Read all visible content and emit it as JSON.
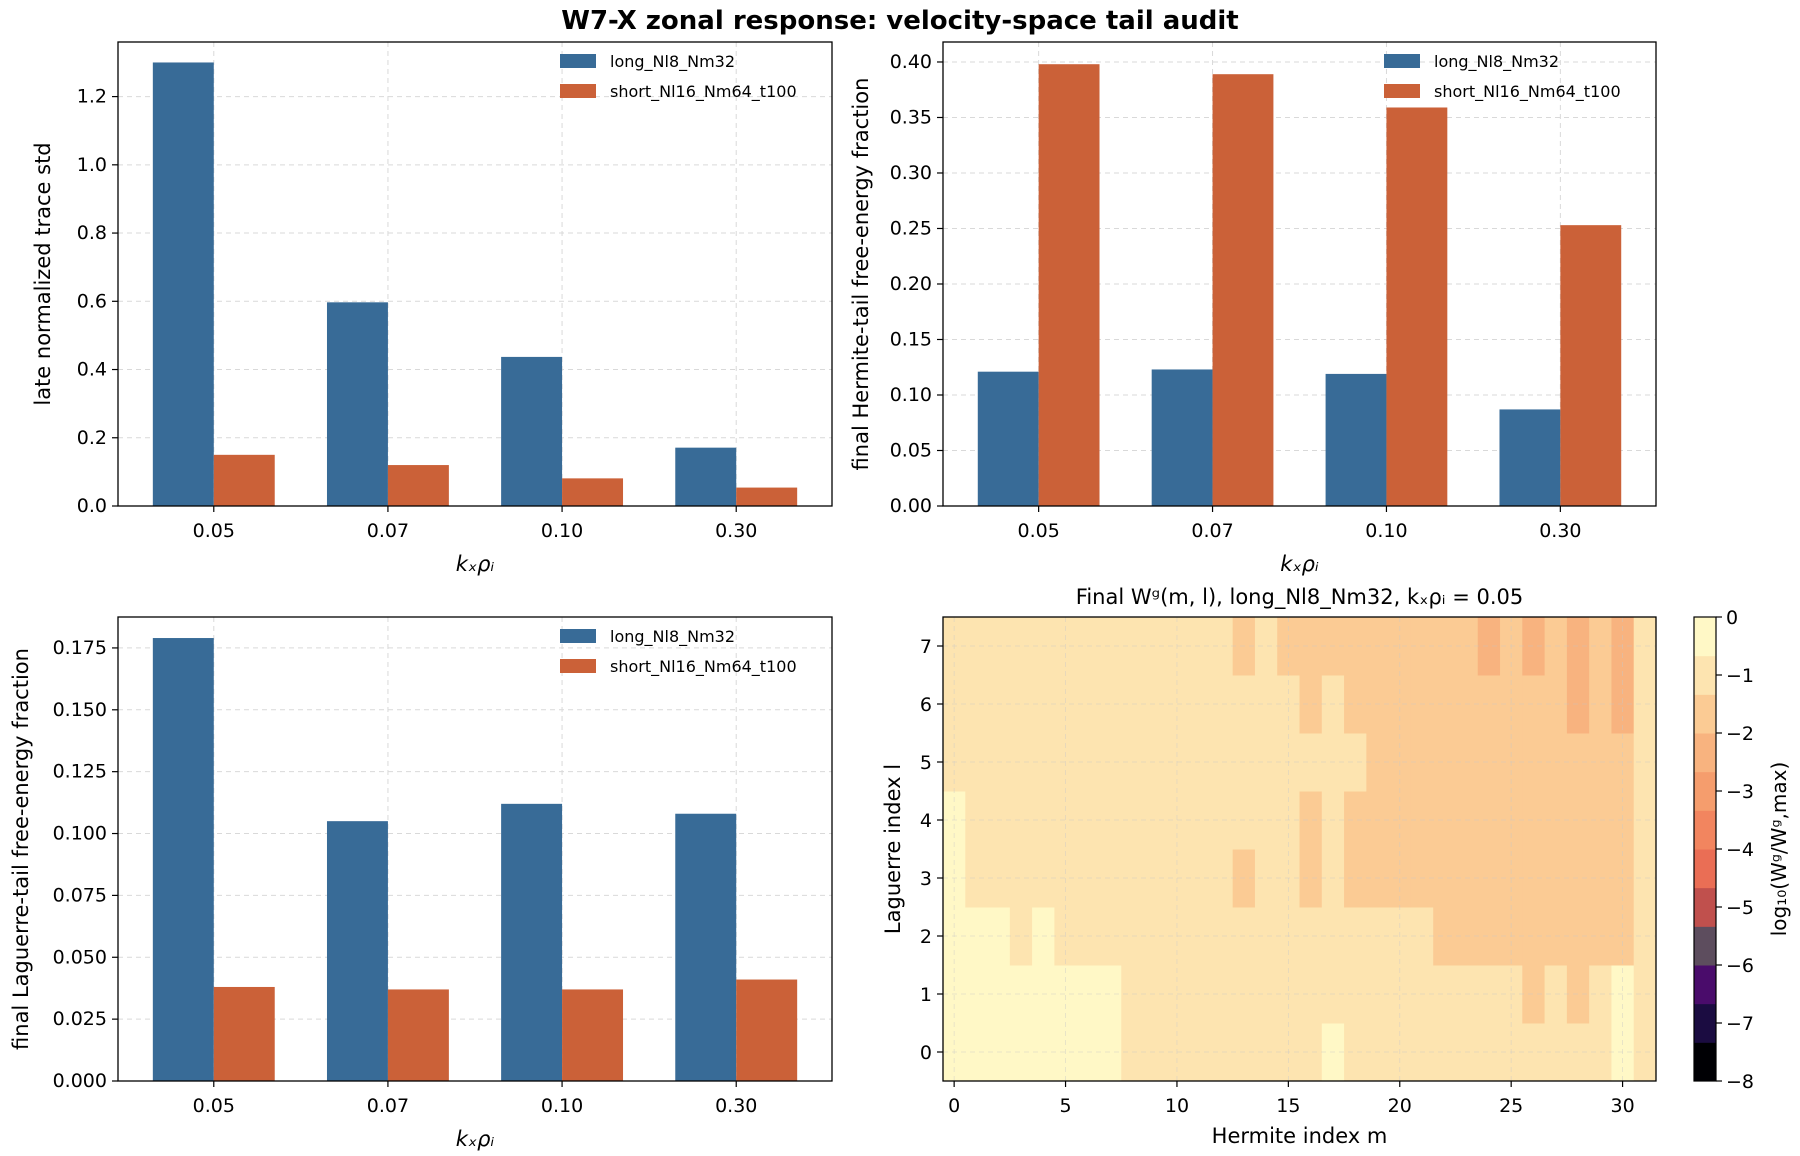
{
  "figure": {
    "title": "W7-X zonal response: velocity-space tail audit"
  },
  "chart_data": [
    {
      "type": "bar",
      "categories": [
        "0.05",
        "0.07",
        "0.10",
        "0.30"
      ],
      "series": [
        {
          "name": "long_Nl8_Nm32",
          "color": "#386b97",
          "values": [
            1.3,
            0.597,
            0.437,
            0.171
          ]
        },
        {
          "name": "short_Nl16_Nm64_t100",
          "color": "#cb6138",
          "values": [
            0.15,
            0.12,
            0.081,
            0.054
          ]
        }
      ],
      "title": "",
      "xlabel": "kₓρᵢ",
      "ylabel": "late normalized trace std",
      "ylim": [
        0,
        1.36
      ],
      "yticks": [
        "0.0",
        "0.2",
        "0.4",
        "0.6",
        "0.8",
        "1.0",
        "1.2"
      ],
      "ytick_values": [
        0,
        0.2,
        0.4,
        0.6,
        0.8,
        1.0,
        1.2
      ],
      "grid": true,
      "legend": "top-right"
    },
    {
      "type": "bar",
      "categories": [
        "0.05",
        "0.07",
        "0.10",
        "0.30"
      ],
      "series": [
        {
          "name": "long_Nl8_Nm32",
          "color": "#386b97",
          "values": [
            0.121,
            0.123,
            0.119,
            0.087
          ]
        },
        {
          "name": "short_Nl16_Nm64_t100",
          "color": "#cb6138",
          "values": [
            0.398,
            0.389,
            0.359,
            0.253
          ]
        }
      ],
      "title": "",
      "xlabel": "kₓρᵢ",
      "ylabel": "final Hermite-tail free-energy fraction",
      "ylim": [
        0,
        0.418
      ],
      "yticks": [
        "0.00",
        "0.05",
        "0.10",
        "0.15",
        "0.20",
        "0.25",
        "0.30",
        "0.35",
        "0.40"
      ],
      "ytick_values": [
        0,
        0.05,
        0.1,
        0.15,
        0.2,
        0.25,
        0.3,
        0.35,
        0.4
      ],
      "grid": true,
      "legend": "top-right"
    },
    {
      "type": "bar",
      "categories": [
        "0.05",
        "0.07",
        "0.10",
        "0.30"
      ],
      "series": [
        {
          "name": "long_Nl8_Nm32",
          "color": "#386b97",
          "values": [
            0.179,
            0.105,
            0.112,
            0.108
          ]
        },
        {
          "name": "short_Nl16_Nm64_t100",
          "color": "#cb6138",
          "values": [
            0.038,
            0.037,
            0.037,
            0.041
          ]
        }
      ],
      "title": "",
      "xlabel": "kₓρᵢ",
      "ylabel": "final Laguerre-tail free-energy fraction",
      "ylim": [
        0,
        0.1875
      ],
      "yticks": [
        "0.000",
        "0.025",
        "0.050",
        "0.075",
        "0.100",
        "0.125",
        "0.150",
        "0.175"
      ],
      "ytick_values": [
        0,
        0.025,
        0.05,
        0.075,
        0.1,
        0.125,
        0.15,
        0.175
      ],
      "grid": true,
      "legend": "top-right"
    },
    {
      "type": "heatmap",
      "title": "Final Wᵍ(m, l), long_Nl8_Nm32, kₓρᵢ = 0.05",
      "xlabel": "Hermite index m",
      "ylabel": "Laguerre index l",
      "x_range": [
        0,
        31
      ],
      "y_range": [
        0,
        7
      ],
      "xticks": [
        "0",
        "5",
        "10",
        "15",
        "20",
        "25",
        "30"
      ],
      "yticks": [
        "0",
        "1",
        "2",
        "3",
        "4",
        "5",
        "6",
        "7"
      ],
      "colorbar_label": "log₁₀(Wᵍ/Wᵍ,max)",
      "colorbar_range": [
        -8,
        0
      ],
      "colorbar_ticks": [
        "0",
        "−1",
        "−2",
        "−3",
        "−4",
        "−5",
        "−6",
        "−7",
        "−8"
      ],
      "colors": [
        "#000004",
        "#1b0c41",
        "#4a0c6b",
        "#5d4d5e",
        "#c0504d",
        "#ea6e55",
        "#f2855f",
        "#f59d6d",
        "#f8b37f",
        "#fbcb94",
        "#fde4b0",
        "#fff8c6"
      ],
      "values": [
        [
          -0.12,
          -0.05,
          -0.6,
          -0.65,
          -0.6,
          -0.65,
          -0.6,
          -0.65,
          -0.7,
          -0.75,
          -0.7,
          -0.75,
          -0.72,
          -0.76,
          -0.72,
          -0.75,
          -0.72,
          -0.62,
          -0.75,
          -0.72,
          -0.75,
          -0.78,
          -0.78,
          -0.82,
          -0.85,
          -0.85,
          -0.9,
          -0.85,
          -0.95,
          -0.75,
          -0.15,
          -0.7
        ],
        [
          -0.2,
          -0.45,
          -0.5,
          -0.55,
          -0.5,
          -0.55,
          -0.5,
          -0.6,
          -0.85,
          -0.9,
          -0.95,
          -0.9,
          -1.0,
          -0.95,
          -1.05,
          -1.0,
          -1.1,
          -0.9,
          -0.95,
          -1.05,
          -1.15,
          -1.1,
          -1.2,
          -1.15,
          -1.25,
          -1.3,
          -1.5,
          -1.3,
          -1.6,
          -1.2,
          -0.2,
          -0.9
        ],
        [
          -0.5,
          -0.55,
          -0.6,
          -0.7,
          -0.6,
          -0.7,
          -0.75,
          -0.9,
          -1.0,
          -1.05,
          -1.1,
          -1.05,
          -1.1,
          -1.15,
          -1.1,
          -1.2,
          -1.15,
          -1.05,
          -1.15,
          -1.2,
          -1.3,
          -1.3,
          -1.35,
          -1.4,
          -1.55,
          -1.35,
          -1.75,
          -1.4,
          -1.85,
          -1.5,
          -1.7,
          -1.1
        ],
        [
          -0.55,
          -0.75,
          -0.8,
          -1.0,
          -0.8,
          -0.9,
          -0.9,
          -1.05,
          -1.2,
          -1.25,
          -1.3,
          -1.25,
          -1.3,
          -1.35,
          -1.2,
          -1.3,
          -1.35,
          -1.25,
          -1.35,
          -1.4,
          -1.5,
          -1.45,
          -1.5,
          -1.55,
          -1.7,
          -1.45,
          -1.9,
          -1.55,
          -2.0,
          -1.7,
          -2.0,
          -1.2
        ],
        [
          -0.6,
          -1.0,
          -0.85,
          -0.9,
          -0.85,
          -0.9,
          -0.95,
          -1.05,
          -1.2,
          -1.15,
          -1.25,
          -1.2,
          -1.25,
          -1.3,
          -1.25,
          -1.3,
          -1.35,
          -1.2,
          -1.35,
          -1.4,
          -1.5,
          -1.45,
          -1.5,
          -1.5,
          -1.7,
          -1.45,
          -1.85,
          -1.55,
          -2.0,
          -1.7,
          -1.9,
          -1.2
        ],
        [
          -0.7,
          -0.85,
          -0.85,
          -0.9,
          -0.85,
          -0.9,
          -0.9,
          -1.05,
          -1.1,
          -1.15,
          -1.05,
          -1.15,
          -1.1,
          -1.15,
          -1.1,
          -1.2,
          -1.3,
          -1.1,
          -1.3,
          -1.35,
          -1.5,
          -1.45,
          -1.55,
          -1.5,
          -1.75,
          -1.45,
          -1.9,
          -1.55,
          -2.0,
          -1.75,
          -1.85,
          -1.2
        ],
        [
          -0.8,
          -0.9,
          -0.95,
          -1.0,
          -0.95,
          -1.0,
          -1.05,
          -1.1,
          -1.15,
          -1.1,
          -1.2,
          -1.15,
          -1.2,
          -1.25,
          -1.2,
          -1.3,
          -1.4,
          -1.2,
          -1.4,
          -1.45,
          -1.7,
          -1.5,
          -1.75,
          -1.55,
          -1.9,
          -1.5,
          -2.0,
          -1.55,
          -2.1,
          -1.8,
          -2.05,
          -1.25
        ],
        [
          -0.9,
          -1.0,
          -1.05,
          -1.25,
          -1.05,
          -1.1,
          -1.1,
          -1.15,
          -1.2,
          -1.25,
          -1.2,
          -1.25,
          -1.3,
          -1.35,
          -1.3,
          -1.35,
          -1.5,
          -1.35,
          -1.6,
          -1.5,
          -1.8,
          -1.6,
          -1.9,
          -1.6,
          -2.2,
          -1.7,
          -2.3,
          -1.8,
          -2.4,
          -1.9,
          -2.3,
          -1.3
        ]
      ]
    }
  ]
}
